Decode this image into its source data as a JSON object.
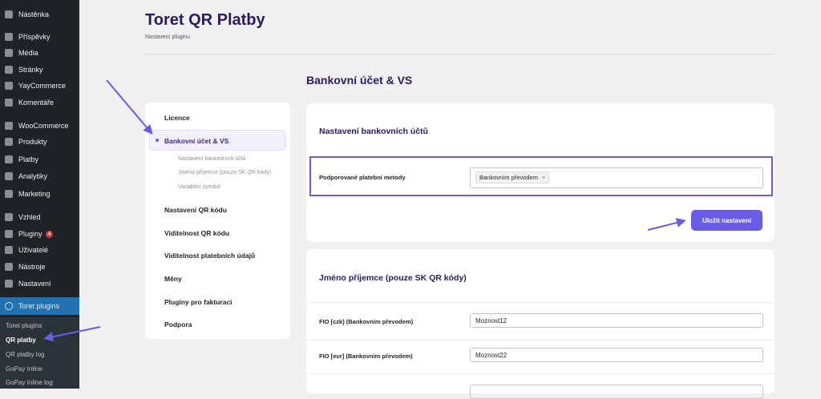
{
  "sidebar": {
    "items": [
      {
        "label": "Nástěnka",
        "icon": "dashboard-icon"
      },
      {
        "label": "Příspěvky",
        "icon": "pin-icon"
      },
      {
        "label": "Média",
        "icon": "media-icon"
      },
      {
        "label": "Stránky",
        "icon": "pages-icon"
      },
      {
        "label": "YayCommerce",
        "icon": "yaycommerce-icon"
      },
      {
        "label": "Komentáře",
        "icon": "comment-icon"
      },
      {
        "label": "WooCommerce",
        "icon": "woocommerce-icon"
      },
      {
        "label": "Produkty",
        "icon": "products-icon"
      },
      {
        "label": "Platby",
        "icon": "payments-icon"
      },
      {
        "label": "Analytiky",
        "icon": "analytics-icon"
      },
      {
        "label": "Marketing",
        "icon": "megaphone-icon"
      },
      {
        "label": "Vzhled",
        "icon": "brush-icon"
      },
      {
        "label": "Pluginy",
        "icon": "plugin-icon",
        "badge": "4"
      },
      {
        "label": "Uživatelé",
        "icon": "users-icon"
      },
      {
        "label": "Nástroje",
        "icon": "wrench-icon"
      },
      {
        "label": "Nastavení",
        "icon": "settings-icon"
      },
      {
        "label": "Toret plugins",
        "icon": "toret-icon"
      }
    ],
    "submenu": [
      "Toret plugins",
      "QR platby",
      "QR platby log",
      "GoPay Inline",
      "GoPay Inline log"
    ]
  },
  "header": {
    "title": "Toret QR Platby",
    "subtitle": "Nastavení pluginu"
  },
  "section_title": "Bankovní účet & VS",
  "nav": {
    "items": [
      "Licence",
      "Bankovní účet & VS",
      "Nastavení QR kódu",
      "Viditelnost QR kódu",
      "Viditelnost platebních údajů",
      "Měny",
      "Pluginy pro fakturaci",
      "Podpora"
    ],
    "subitems": [
      "Nastavení bankovních účtů",
      "Jméno příjemce (pouze SK QR kódy)",
      "Variabilní symbol"
    ]
  },
  "card1": {
    "title": "Nastavení bankovních účtů",
    "label": "Podporované platební metody",
    "tag": "Bankovním převodem",
    "tag_remove": "×",
    "save": "Uložit nastavení"
  },
  "card2": {
    "title": "Jméno příjemce (pouze SK QR kódy)",
    "rows": [
      {
        "label": "FIO [czk] (Bankovním převodem)",
        "value": "Moznost12"
      },
      {
        "label": "FIO [eur] (Bankovním převodem)",
        "value": "Moznost22"
      }
    ]
  },
  "colors": {
    "accent": "#6b5ce7",
    "wp_active": "#2271b1"
  }
}
